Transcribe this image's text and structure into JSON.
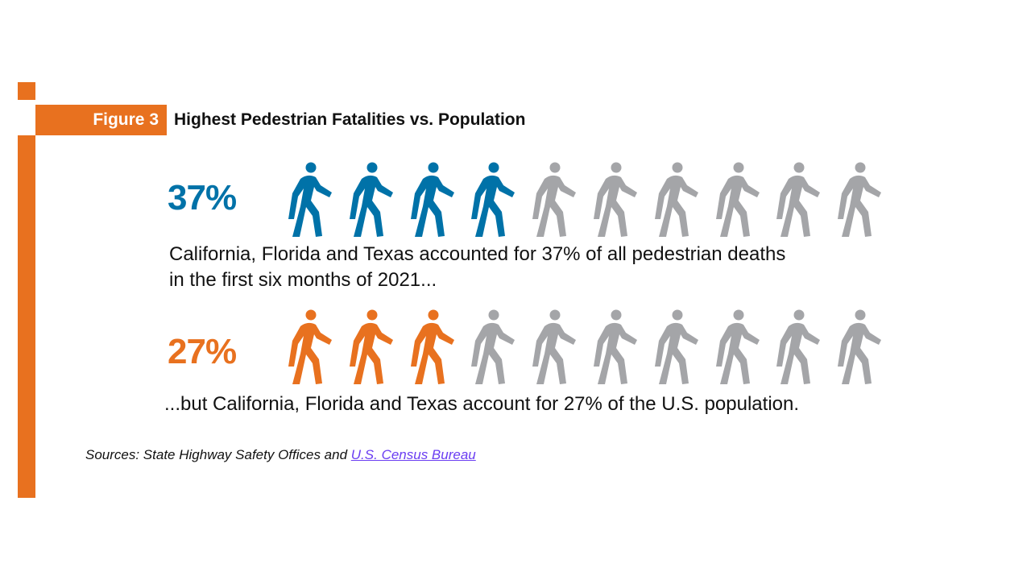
{
  "figure": {
    "label": "Figure 3",
    "title": "Highest Pedestrian Fatalities vs. Population"
  },
  "colors": {
    "accent_orange": "#e8711f",
    "blue": "#0072a8",
    "gray": "#a4a5a8"
  },
  "chart_data": {
    "type": "pictograph",
    "icon": "pedestrian-icon",
    "icons_per_row": 10,
    "rows": [
      {
        "value_label": "37%",
        "value": 37,
        "filled_icons": 4,
        "color": "#0072a8",
        "caption_line1": "California, Florida and Texas accounted for 37% of all pedestrian deaths",
        "caption_line2": "in the first six months of 2021..."
      },
      {
        "value_label": "27%",
        "value": 27,
        "filled_icons": 3,
        "color": "#e8711f",
        "caption_line1": "...but California, Florida and Texas account for 27% of the U.S. population.",
        "caption_line2": ""
      }
    ]
  },
  "sources": {
    "prefix": "Sources: State Highway Safety Offices and ",
    "link_text": "U.S. Census Bureau"
  }
}
